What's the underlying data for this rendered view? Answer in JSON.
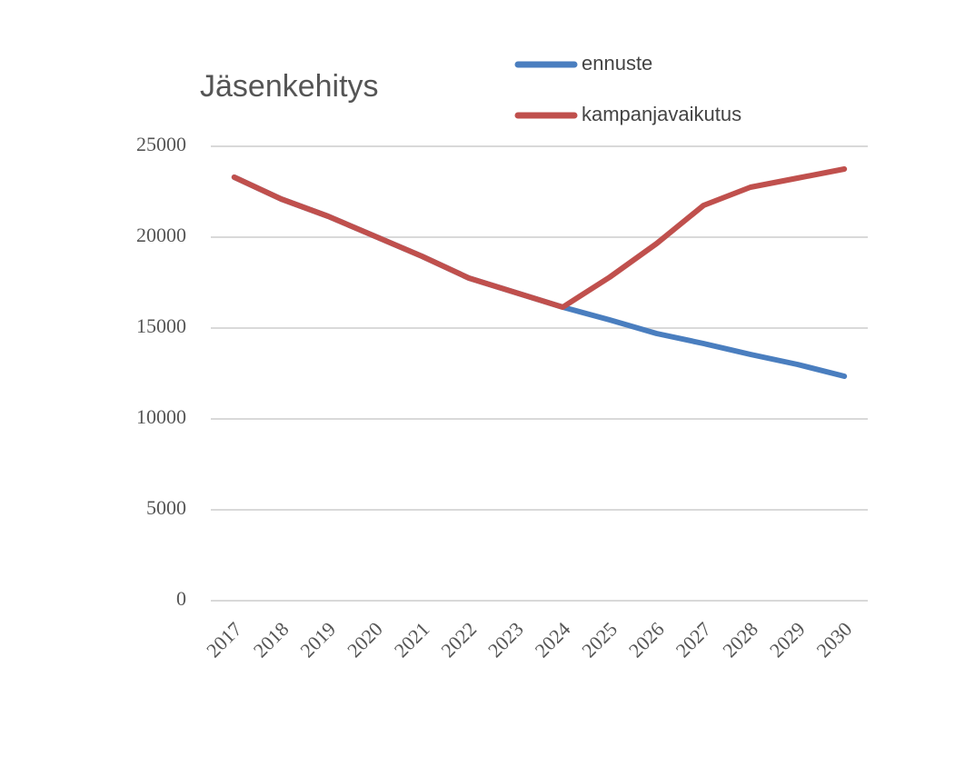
{
  "chart_data": {
    "type": "line",
    "title": "Jäsenkehitys",
    "categories": [
      "2017",
      "2018",
      "2019",
      "2020",
      "2021",
      "2022",
      "2023",
      "2024",
      "2025",
      "2026",
      "2027",
      "2028",
      "2029",
      "2030"
    ],
    "series": [
      {
        "name": "ennuste",
        "color": "#4a7ebf",
        "values": [
          23300,
          22100,
          21150,
          20050,
          18950,
          17750,
          16950,
          16150,
          15450,
          14700,
          14150,
          13550,
          13000,
          12350
        ]
      },
      {
        "name": "kampanjavaikutus",
        "color": "#c0504d",
        "values": [
          23300,
          22100,
          21150,
          20050,
          18950,
          17750,
          16950,
          16150,
          17800,
          19650,
          21750,
          22750,
          23250,
          23750
        ]
      }
    ],
    "ylim": [
      0,
      25000
    ],
    "yticks": [
      0,
      5000,
      10000,
      15000,
      20000,
      25000
    ],
    "grid": true,
    "legend": "top-right"
  }
}
